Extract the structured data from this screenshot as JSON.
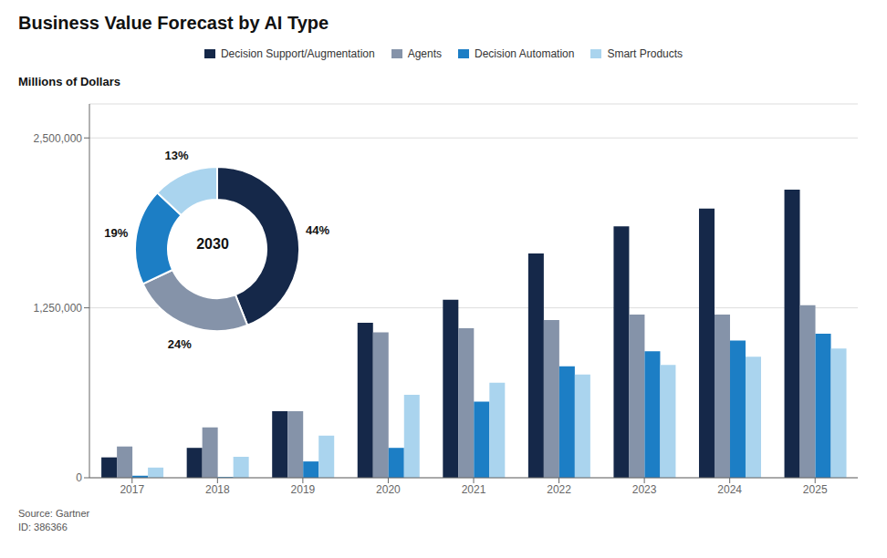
{
  "chart_data": [
    {
      "type": "bar",
      "title": "Business Value Forecast by AI Type",
      "ylabel": "Millions of Dollars",
      "annotations": [
        "Source: Gartner\nID: 386366"
      ],
      "categories": [
        "2017",
        "2018",
        "2019",
        "2020",
        "2021",
        "2022",
        "2023",
        "2024",
        "2025"
      ],
      "series": [
        {
          "name": "Decision Support/Augmentation",
          "color": "#152849",
          "values": [
            150000,
            220000,
            490000,
            1140000,
            1310000,
            1650000,
            1850000,
            1980000,
            2120000
          ]
        },
        {
          "name": "Agents",
          "color": "#8593a9",
          "values": [
            230000,
            370000,
            490000,
            1070000,
            1100000,
            1160000,
            1200000,
            1200000,
            1270000
          ]
        },
        {
          "name": "Decision Automation",
          "color": "#1c7ec5",
          "values": [
            15000,
            5000,
            120000,
            220000,
            560000,
            820000,
            930000,
            1010000,
            1060000
          ]
        },
        {
          "name": "Smart Products",
          "color": "#aad4ee",
          "values": [
            75000,
            155000,
            310000,
            610000,
            700000,
            760000,
            830000,
            890000,
            950000
          ]
        }
      ],
      "ylim": [
        0,
        2750000
      ],
      "yticks": [
        0,
        {
          "value": 1250000,
          "label": "1,250,000"
        },
        {
          "value": 2500000,
          "label": "2,500,000"
        }
      ],
      "grid": true,
      "legend": "top"
    },
    {
      "type": "pie",
      "values": [
        44,
        24,
        19,
        13
      ],
      "value_labels": [
        "44%",
        "24%",
        "19%",
        "13%"
      ],
      "colors": [
        "#152849",
        "#8593a9",
        "#1c7ec5",
        "#aad4ee"
      ],
      "annotations": [
        "2030"
      ],
      "data_labels": true
    }
  ]
}
